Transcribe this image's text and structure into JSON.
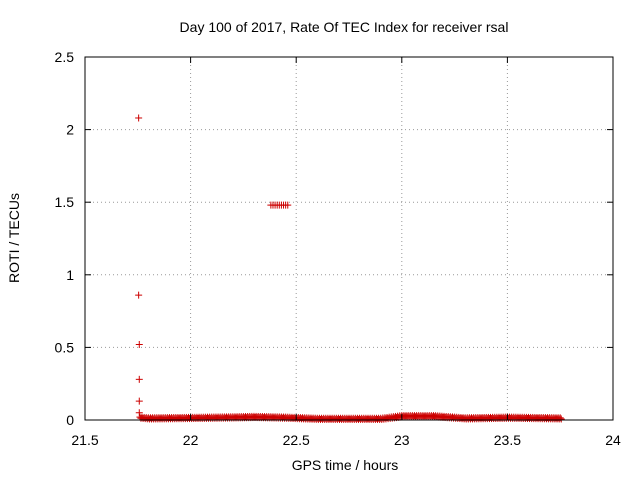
{
  "chart_data": {
    "type": "scatter",
    "title": "Day 100 of 2017, Rate Of TEC Index for receiver rsal",
    "xlabel": "GPS time / hours",
    "ylabel": "ROTI / TECUs",
    "xlim": [
      21.5,
      24
    ],
    "ylim": [
      0,
      2.5
    ],
    "xticks": [
      "21.5",
      "22",
      "22.5",
      "23",
      "23.5",
      "24"
    ],
    "yticks": [
      "0",
      "0.5",
      "1",
      "1.5",
      "2",
      "2.5"
    ],
    "grid": true,
    "marker": "plus",
    "colors": {
      "series": "#cc0000",
      "grid": "#999999",
      "axis": "#000000"
    },
    "series": [
      {
        "name": "",
        "outliers": [
          {
            "x": 21.754,
            "y": 2.08
          },
          {
            "x": 21.754,
            "y": 0.86
          },
          {
            "x": 21.757,
            "y": 0.52
          },
          {
            "x": 21.757,
            "y": 0.28
          },
          {
            "x": 21.757,
            "y": 0.13
          },
          {
            "x": 21.757,
            "y": 0.05
          },
          {
            "x": 22.38,
            "y": 1.48
          },
          {
            "x": 22.39,
            "y": 1.48
          },
          {
            "x": 22.4,
            "y": 1.48
          },
          {
            "x": 22.41,
            "y": 1.48
          },
          {
            "x": 22.42,
            "y": 1.48
          },
          {
            "x": 22.43,
            "y": 1.48
          },
          {
            "x": 22.44,
            "y": 1.48
          },
          {
            "x": 22.45,
            "y": 1.48
          },
          {
            "x": 22.46,
            "y": 1.48
          }
        ],
        "baseline": {
          "x_start": 21.76,
          "x_end": 23.75,
          "x_step": 0.01,
          "y_profile": [
            {
              "x": 21.76,
              "y": 0.02
            },
            {
              "x": 21.8,
              "y": 0.015
            },
            {
              "x": 22.0,
              "y": 0.018
            },
            {
              "x": 22.2,
              "y": 0.022
            },
            {
              "x": 22.3,
              "y": 0.025
            },
            {
              "x": 22.45,
              "y": 0.02
            },
            {
              "x": 22.6,
              "y": 0.012
            },
            {
              "x": 22.9,
              "y": 0.012
            },
            {
              "x": 23.0,
              "y": 0.03
            },
            {
              "x": 23.15,
              "y": 0.03
            },
            {
              "x": 23.3,
              "y": 0.015
            },
            {
              "x": 23.5,
              "y": 0.02
            },
            {
              "x": 23.75,
              "y": 0.015
            }
          ]
        }
      }
    ]
  }
}
